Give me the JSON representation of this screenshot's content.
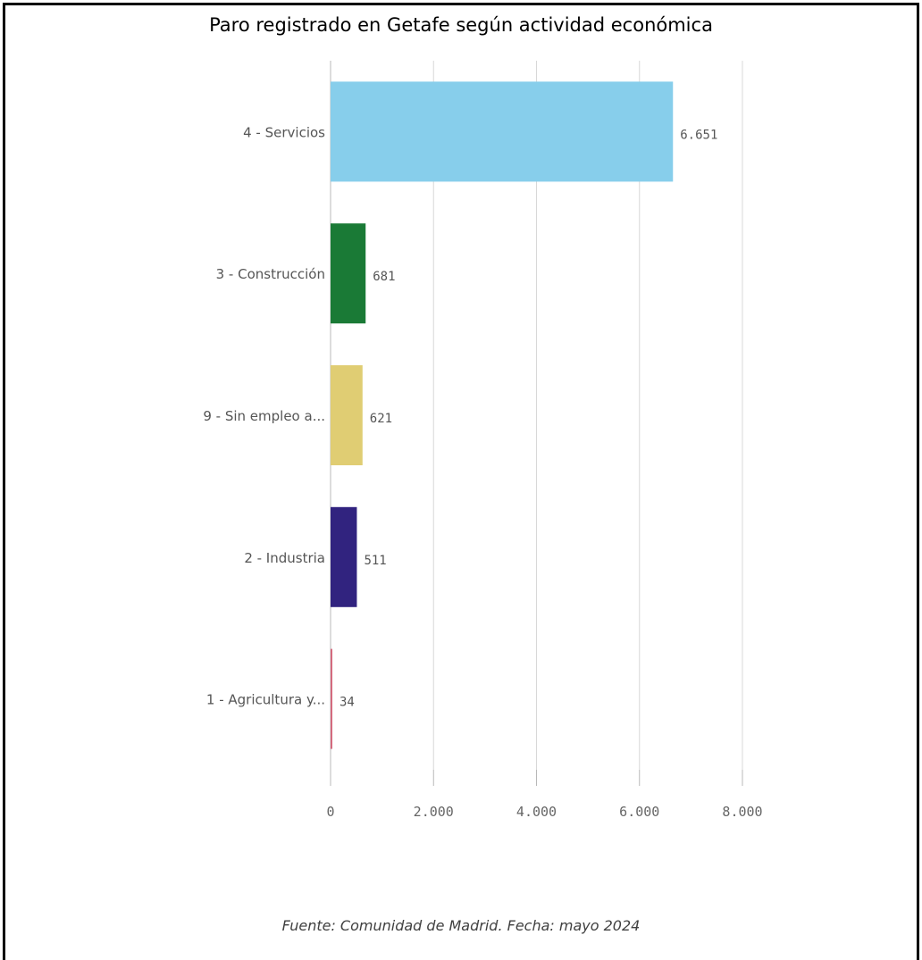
{
  "chart_data": {
    "type": "bar",
    "orientation": "horizontal",
    "title": "Paro registrado en Getafe según actividad económica",
    "categories": [
      "4 - Servicios",
      "3 - Construcción",
      "9 - Sin empleo a...",
      "2 - Industria",
      "1 - Agricultura y..."
    ],
    "values": [
      6651,
      681,
      621,
      511,
      34
    ],
    "value_labels": [
      "6.651",
      "681",
      "621",
      "511",
      "34"
    ],
    "colors": [
      "#87ceeb",
      "#1a7a36",
      "#e0cd73",
      "#31237f",
      "#d46a7e"
    ],
    "xlim": [
      0,
      8000
    ],
    "xticks": [
      0,
      2000,
      4000,
      6000,
      8000
    ],
    "xtick_labels": [
      "0",
      "2.000",
      "4.000",
      "6.000",
      "8.000"
    ],
    "grid": true
  },
  "source_note": "Fuente: Comunidad de Madrid. Fecha: mayo 2024"
}
